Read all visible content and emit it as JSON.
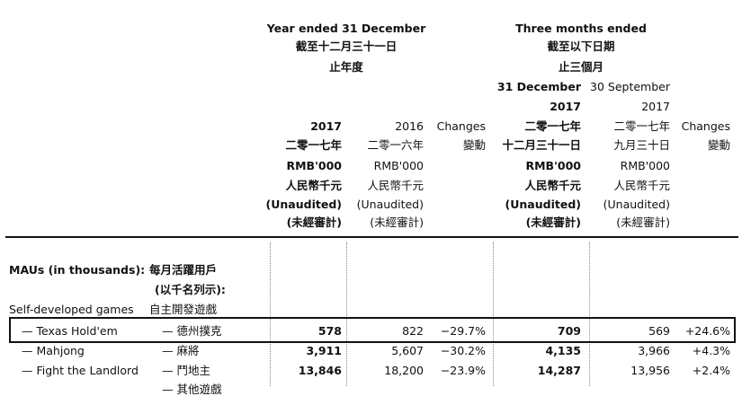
{
  "header": {
    "year_group_en": "Year ended 31 December",
    "year_group_zh1": "截至十二月三十一日",
    "year_group_zh2": "止年度",
    "three_group_en": "Three months ended",
    "three_group_zh1": "截至以下日期",
    "three_group_zh2": "止三個月",
    "three_dec_label": "31 December",
    "three_sep_label": "30 September"
  },
  "columns": [
    {
      "year": "2017",
      "zh_date": "二零一七年",
      "unit_en": "RMB'000",
      "unit_zh": "人民幣千元",
      "audit_en": "(Unaudited)",
      "audit_zh": "(未經審計)"
    },
    {
      "year": "2016",
      "zh_date": "二零一六年",
      "unit_en": "RMB'000",
      "unit_zh": "人民幣千元",
      "audit_en": "(Unaudited)",
      "audit_zh": "(未經審計)"
    },
    {
      "changes_en": "Changes",
      "changes_zh": "變動"
    },
    {
      "year": "2017",
      "zh_date": "十二月三十一日",
      "zh_year_top": "二零一七年",
      "unit_en": "RMB'000",
      "unit_zh": "人民幣千元",
      "audit_en": "(Unaudited)",
      "audit_zh": "(未經審計)"
    },
    {
      "year": "2017",
      "zh_date": "九月三十日",
      "zh_year_top": "二零一七年",
      "unit_en": "RMB'000",
      "unit_zh": "人民幣千元",
      "audit_en": "(Unaudited)",
      "audit_zh": "(未經審計)"
    },
    {
      "changes_en": "Changes",
      "changes_zh": "變動"
    }
  ],
  "section": {
    "label_en": "MAUs (in thousands):",
    "label_zh1": "每月活躍用戶",
    "label_zh2": "(以千名列示):",
    "sub_en": "Self-developed games",
    "sub_zh": "自主開發遊戲"
  },
  "rows": [
    {
      "en": "— Texas Hold'em",
      "zh": "— 德州撲克",
      "v2017": "578",
      "v2016": "822",
      "chg_year": "−29.7%",
      "q_dec": "709",
      "q_sep": "569",
      "chg_q": "+24.6%"
    },
    {
      "en": "— Mahjong",
      "zh": "— 麻將",
      "v2017": "3,911",
      "v2016": "5,607",
      "chg_year": "−30.2%",
      "q_dec": "4,135",
      "q_sep": "3,966",
      "chg_q": "+4.3%"
    },
    {
      "en": "— Fight the Landlord",
      "zh": "— 鬥地主",
      "v2017": "13,846",
      "v2016": "18,200",
      "chg_year": "−23.9%",
      "q_dec": "14,287",
      "q_sep": "13,956",
      "chg_q": "+2.4%"
    }
  ],
  "partial_row_zh": "— 其他遊戲"
}
